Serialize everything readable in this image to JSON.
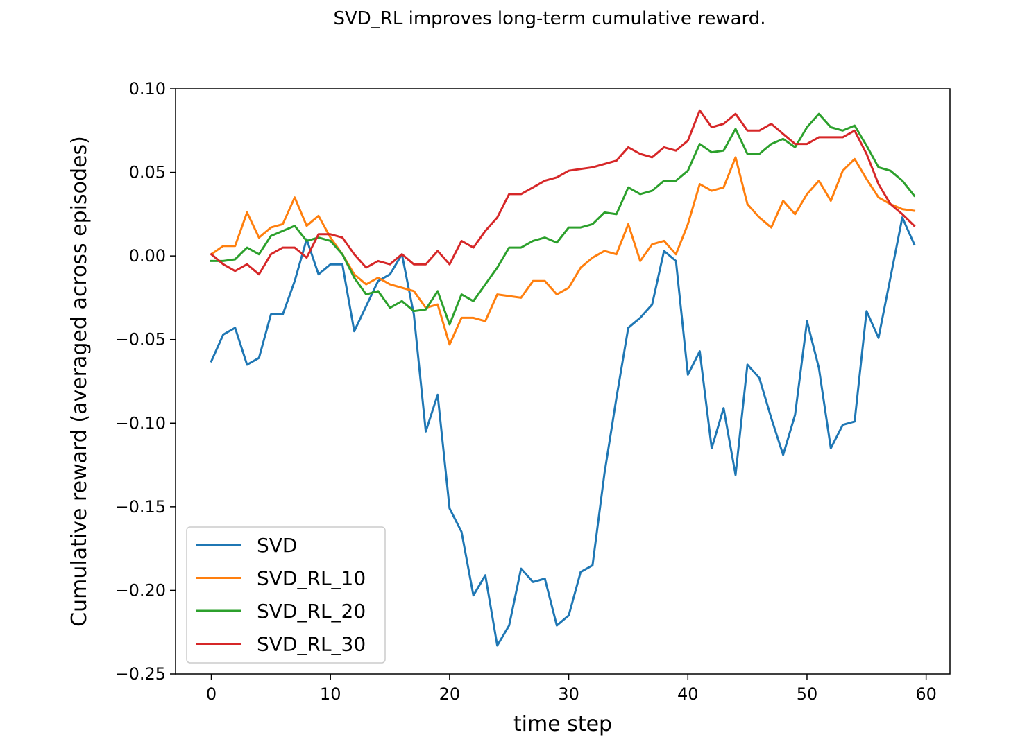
{
  "chart_data": {
    "type": "line",
    "title": "SVD_RL improves long-term cumulative reward.",
    "xlabel": "time step",
    "ylabel": "Cumulative reward (averaged across episodes)",
    "xlim": [
      -3,
      62
    ],
    "ylim": [
      -0.25,
      0.1
    ],
    "xticks": [
      0,
      10,
      20,
      30,
      40,
      50,
      60
    ],
    "xtick_labels": [
      "0",
      "10",
      "20",
      "30",
      "40",
      "50",
      "60"
    ],
    "yticks": [
      0.1,
      0.05,
      0.0,
      -0.05,
      -0.1,
      -0.15,
      -0.2,
      -0.25
    ],
    "ytick_labels": [
      "0.10",
      "0.05",
      "0.00",
      "−0.05",
      "−0.10",
      "−0.15",
      "−0.20",
      "−0.25"
    ],
    "grid": false,
    "legend_position": "lower-left",
    "x": [
      0,
      1,
      2,
      3,
      4,
      5,
      6,
      7,
      8,
      9,
      10,
      11,
      12,
      13,
      14,
      15,
      16,
      17,
      18,
      19,
      20,
      21,
      22,
      23,
      24,
      25,
      26,
      27,
      28,
      29,
      30,
      31,
      32,
      33,
      34,
      35,
      36,
      37,
      38,
      39,
      40,
      41,
      42,
      43,
      44,
      45,
      46,
      47,
      48,
      49,
      50,
      51,
      52,
      53,
      54,
      55,
      56,
      57,
      58,
      59
    ],
    "series": [
      {
        "name": "SVD",
        "color": "#1f77b4",
        "values": [
          -0.063,
          -0.047,
          -0.043,
          -0.065,
          -0.061,
          -0.035,
          -0.035,
          -0.015,
          0.01,
          -0.011,
          -0.005,
          -0.005,
          -0.045,
          -0.03,
          -0.015,
          -0.011,
          0.001,
          -0.035,
          -0.105,
          -0.083,
          -0.151,
          -0.165,
          -0.203,
          -0.191,
          -0.233,
          -0.221,
          -0.187,
          -0.195,
          -0.193,
          -0.221,
          -0.215,
          -0.189,
          -0.185,
          -0.13,
          -0.085,
          -0.043,
          -0.037,
          -0.029,
          0.003,
          -0.003,
          -0.071,
          -0.057,
          -0.115,
          -0.091,
          -0.131,
          -0.065,
          -0.073,
          -0.097,
          -0.119,
          -0.095,
          -0.039,
          -0.067,
          -0.115,
          -0.101,
          -0.099,
          -0.033,
          -0.049,
          -0.013,
          0.023,
          0.007
        ]
      },
      {
        "name": "SVD_RL_10",
        "color": "#ff7f0e",
        "values": [
          0.001,
          0.006,
          0.006,
          0.026,
          0.011,
          0.017,
          0.019,
          0.035,
          0.018,
          0.024,
          0.011,
          0.001,
          -0.011,
          -0.017,
          -0.013,
          -0.017,
          -0.019,
          -0.021,
          -0.031,
          -0.029,
          -0.053,
          -0.037,
          -0.037,
          -0.039,
          -0.023,
          -0.024,
          -0.025,
          -0.015,
          -0.015,
          -0.023,
          -0.019,
          -0.007,
          -0.001,
          0.003,
          0.001,
          0.019,
          -0.003,
          0.007,
          0.009,
          0.001,
          0.019,
          0.043,
          0.039,
          0.041,
          0.059,
          0.031,
          0.023,
          0.017,
          0.033,
          0.025,
          0.037,
          0.045,
          0.033,
          0.051,
          0.058,
          0.046,
          0.035,
          0.031,
          0.028,
          0.027
        ]
      },
      {
        "name": "SVD_RL_20",
        "color": "#2ca02c",
        "values": [
          -0.003,
          -0.003,
          -0.002,
          0.005,
          0.001,
          0.012,
          0.015,
          0.018,
          0.009,
          0.011,
          0.009,
          0.001,
          -0.013,
          -0.023,
          -0.021,
          -0.031,
          -0.027,
          -0.033,
          -0.032,
          -0.021,
          -0.041,
          -0.023,
          -0.027,
          -0.017,
          -0.007,
          0.005,
          0.005,
          0.009,
          0.011,
          0.008,
          0.017,
          0.017,
          0.019,
          0.026,
          0.025,
          0.041,
          0.037,
          0.039,
          0.045,
          0.045,
          0.051,
          0.067,
          0.062,
          0.063,
          0.076,
          0.061,
          0.061,
          0.067,
          0.07,
          0.065,
          0.077,
          0.085,
          0.077,
          0.075,
          0.078,
          0.066,
          0.053,
          0.051,
          0.045,
          0.036
        ]
      },
      {
        "name": "SVD_RL_30",
        "color": "#d62728",
        "values": [
          0.001,
          -0.005,
          -0.009,
          -0.005,
          -0.011,
          0.001,
          0.005,
          0.005,
          -0.001,
          0.013,
          0.013,
          0.011,
          0.001,
          -0.007,
          -0.003,
          -0.005,
          0.001,
          -0.005,
          -0.005,
          0.003,
          -0.005,
          0.009,
          0.005,
          0.015,
          0.023,
          0.037,
          0.037,
          0.041,
          0.045,
          0.047,
          0.051,
          0.052,
          0.053,
          0.055,
          0.057,
          0.065,
          0.061,
          0.059,
          0.065,
          0.063,
          0.069,
          0.087,
          0.077,
          0.079,
          0.085,
          0.075,
          0.075,
          0.079,
          0.073,
          0.067,
          0.067,
          0.071,
          0.071,
          0.071,
          0.075,
          0.061,
          0.043,
          0.031,
          0.025,
          0.018
        ]
      }
    ]
  }
}
